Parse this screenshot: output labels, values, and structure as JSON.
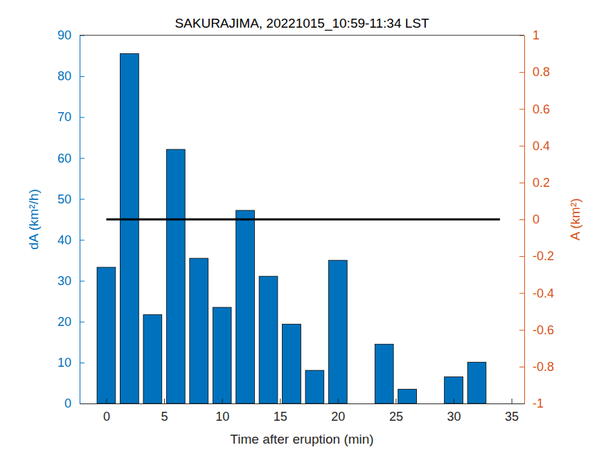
{
  "chart_data": {
    "type": "bar",
    "title": "SAKURAJIMA, 20221015_10:59-11:34 LST",
    "x_label": "Time after eruption (min)",
    "y_label": "dA (km²/h)",
    "y2_label": "A (km²)",
    "xlim": [
      -2.3,
      36.1
    ],
    "xticks": [
      0,
      5,
      10,
      15,
      20,
      25,
      30,
      35
    ],
    "ylim": [
      0,
      90
    ],
    "yticks": [
      0,
      10,
      20,
      30,
      40,
      50,
      60,
      70,
      80,
      90
    ],
    "y2lim": [
      -1,
      1
    ],
    "y2ticks": [
      -1,
      -0.8,
      -0.6,
      -0.4,
      -0.2,
      0,
      0.2,
      0.4,
      0.6,
      0.8,
      1
    ],
    "grid": false,
    "series": [
      {
        "name": "dA",
        "type": "bar",
        "color": "#0072bd",
        "x": [
          0,
          2,
          4,
          6,
          8,
          10,
          12,
          14,
          16,
          18,
          20,
          22,
          24,
          26,
          28,
          30,
          32
        ],
        "values": [
          33.3,
          85.5,
          21.7,
          62.1,
          35.5,
          23.5,
          47.2,
          31.1,
          19.4,
          8.1,
          35.0,
          0,
          14.5,
          3.5,
          0,
          6.5,
          10.1
        ]
      },
      {
        "name": "A",
        "type": "line",
        "axis": "y2",
        "color": "#000000",
        "line_style": "solid",
        "x": [
          0,
          2,
          4,
          6,
          8,
          10,
          12,
          14,
          16,
          18,
          20,
          22,
          24,
          26,
          28,
          30,
          32,
          34
        ],
        "values": [
          0,
          0,
          0,
          0,
          0,
          0,
          0,
          0,
          0,
          0,
          0,
          0,
          0,
          0,
          0,
          0,
          0,
          0
        ]
      }
    ]
  }
}
